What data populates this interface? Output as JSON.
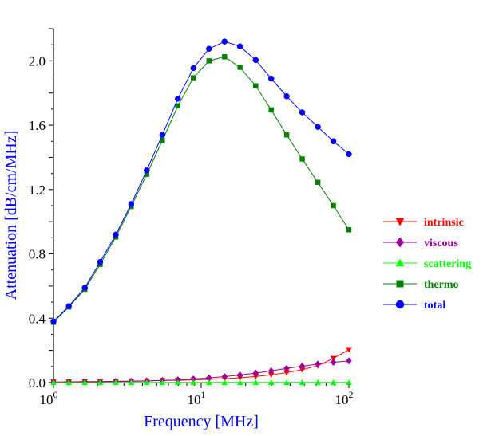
{
  "chart_data": {
    "type": "line",
    "title": "",
    "xlabel": "Frequency [MHz]",
    "ylabel": "Attenuation [dB/cm/MHz]",
    "xscale": "log",
    "xlim": [
      1,
      100
    ],
    "ylim": [
      0,
      2.2
    ],
    "x_ticks": [
      {
        "base": "10",
        "exp": "0",
        "value": 1
      },
      {
        "base": "10",
        "exp": "1",
        "value": 10
      },
      {
        "base": "10",
        "exp": "2",
        "value": 100
      }
    ],
    "y_ticks": [
      {
        "label": "0.0",
        "value": 0.0
      },
      {
        "label": "0.4",
        "value": 0.4
      },
      {
        "label": "0.8",
        "value": 0.8
      },
      {
        "label": "1.2",
        "value": 1.2
      },
      {
        "label": "1.6",
        "value": 1.6
      },
      {
        "label": "2.0",
        "value": 2.0
      }
    ],
    "x": [
      1.0,
      1.27,
      1.63,
      2.07,
      2.64,
      3.36,
      4.28,
      5.46,
      6.95,
      8.86,
      11.3,
      14.4,
      18.3,
      23.4,
      29.8,
      37.9,
      48.3,
      61.6,
      78.5,
      100
    ],
    "legend_position": "right",
    "series": [
      {
        "name": "intrinsic",
        "color": "#ff0000",
        "line_color": "#ff0000",
        "marker": "triangle-down",
        "values": [
          0.004,
          0.005,
          0.006,
          0.007,
          0.008,
          0.009,
          0.011,
          0.013,
          0.015,
          0.017,
          0.02,
          0.024,
          0.03,
          0.038,
          0.048,
          0.062,
          0.08,
          0.105,
          0.15,
          0.205
        ]
      },
      {
        "name": "viscous",
        "color": "#990099",
        "line_color": "#990099",
        "marker": "diamond",
        "values": [
          0.002,
          0.003,
          0.004,
          0.005,
          0.007,
          0.008,
          0.01,
          0.013,
          0.017,
          0.022,
          0.029,
          0.037,
          0.047,
          0.059,
          0.073,
          0.088,
          0.102,
          0.115,
          0.126,
          0.135
        ]
      },
      {
        "name": "scattering",
        "color": "#00ff00",
        "line_color": "#00ff00",
        "marker": "triangle-up",
        "values": [
          0,
          0,
          0,
          0,
          0,
          0,
          0,
          0,
          0,
          0,
          0,
          0,
          0,
          0,
          0,
          0,
          0,
          0,
          0,
          0
        ]
      },
      {
        "name": "thermo",
        "color": "#008000",
        "line_color": "#008000",
        "marker": "square",
        "values": [
          0.375,
          0.47,
          0.58,
          0.735,
          0.905,
          1.095,
          1.295,
          1.505,
          1.72,
          1.895,
          2.0,
          2.025,
          1.96,
          1.845,
          1.695,
          1.54,
          1.39,
          1.245,
          1.1,
          0.95
        ]
      },
      {
        "name": "total",
        "color": "#0000ff",
        "line_color": "#0000ff",
        "marker": "circle",
        "values": [
          0.38,
          0.475,
          0.59,
          0.75,
          0.92,
          1.11,
          1.32,
          1.54,
          1.765,
          1.955,
          2.075,
          2.12,
          2.09,
          2.005,
          1.89,
          1.78,
          1.68,
          1.59,
          1.5,
          1.42
        ]
      }
    ]
  }
}
